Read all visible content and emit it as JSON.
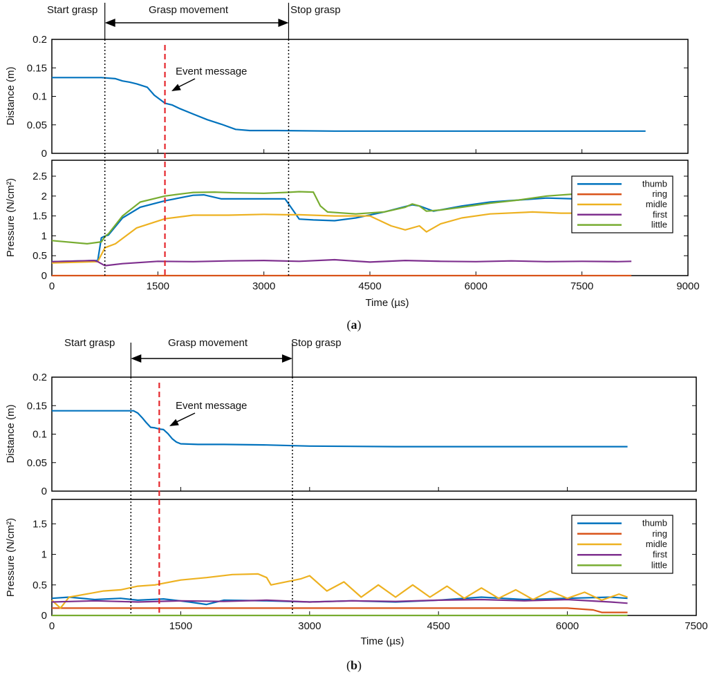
{
  "captions": {
    "a": "a",
    "b": "b"
  },
  "chart_data": [
    {
      "id": "a-distance",
      "panel": "a",
      "type": "line",
      "ylabel": "Distance (m)",
      "xlabel": "",
      "xlim": [
        0,
        9000
      ],
      "ylim": [
        0,
        0.2
      ],
      "yticks": [
        0,
        0.05,
        0.1,
        0.15,
        0.2
      ],
      "ytick_labels": [
        "0",
        "0.05",
        "0.1",
        "0.15",
        "0.2"
      ],
      "series": [
        {
          "color": "#0072bd",
          "x": [
            0,
            700,
            900,
            1000,
            1100,
            1200,
            1350,
            1450,
            1600,
            1700,
            1800,
            2000,
            2200,
            2400,
            2600,
            2800,
            3200,
            4000,
            5000,
            6000,
            7000,
            8400
          ],
          "y": [
            0.133,
            0.133,
            0.131,
            0.127,
            0.125,
            0.122,
            0.116,
            0.102,
            0.088,
            0.085,
            0.079,
            0.069,
            0.059,
            0.051,
            0.042,
            0.04,
            0.04,
            0.039,
            0.039,
            0.039,
            0.039,
            0.039
          ]
        }
      ]
    },
    {
      "id": "a-pressure",
      "panel": "a",
      "type": "line",
      "ylabel": "Pressure (N/cm²)",
      "xlabel": "Time (µs)",
      "xlim": [
        0,
        9000
      ],
      "ylim": [
        0,
        2.9
      ],
      "yticks": [
        0,
        0.5,
        1,
        1.5,
        2,
        2.5
      ],
      "ytick_labels": [
        "0",
        "0.5",
        "1",
        "1.5",
        "2",
        "2.5"
      ],
      "xticks": [
        0,
        1500,
        3000,
        4500,
        6000,
        7500,
        9000
      ],
      "xtick_labels": [
        "0",
        "1500",
        "3000",
        "4500",
        "6000",
        "7500",
        "9000"
      ],
      "legend_position": "top-right",
      "series": [
        {
          "name": "thumb",
          "color": "#0072bd",
          "x": [
            0,
            650,
            700,
            760,
            800,
            1000,
            1250,
            1600,
            2000,
            2150,
            2400,
            3000,
            3300,
            3500,
            3700,
            4000,
            4300,
            4700,
            5100,
            5200,
            5400,
            5800,
            6200,
            6600,
            7000,
            7400
          ],
          "y": [
            0.35,
            0.38,
            0.95,
            1.0,
            1.02,
            1.45,
            1.72,
            1.88,
            2.02,
            2.03,
            1.93,
            1.93,
            1.93,
            1.42,
            1.4,
            1.38,
            1.45,
            1.6,
            1.78,
            1.75,
            1.62,
            1.75,
            1.85,
            1.9,
            1.95,
            1.93
          ]
        },
        {
          "name": "ring",
          "color": "#d95319",
          "x": [
            0,
            8200
          ],
          "y": [
            0.0,
            0.0
          ]
        },
        {
          "name": "midle",
          "color": "#edb120",
          "x": [
            0,
            650,
            750,
            900,
            1200,
            1600,
            2000,
            2500,
            3000,
            3300,
            3500,
            4000,
            4500,
            4800,
            5000,
            5200,
            5300,
            5500,
            5800,
            6200,
            6800,
            7200,
            7500
          ],
          "y": [
            0.32,
            0.35,
            0.7,
            0.8,
            1.2,
            1.43,
            1.52,
            1.52,
            1.54,
            1.53,
            1.53,
            1.5,
            1.5,
            1.25,
            1.15,
            1.25,
            1.1,
            1.3,
            1.45,
            1.55,
            1.6,
            1.57,
            1.57
          ]
        },
        {
          "name": "first",
          "color": "#7e2f8e",
          "x": [
            0,
            600,
            650,
            750,
            1000,
            1500,
            2000,
            2500,
            3000,
            3500,
            4000,
            4500,
            5000,
            5500,
            6000,
            6500,
            7000,
            7500,
            8000,
            8200
          ],
          "y": [
            0.35,
            0.38,
            0.35,
            0.25,
            0.3,
            0.36,
            0.35,
            0.37,
            0.38,
            0.36,
            0.4,
            0.34,
            0.38,
            0.36,
            0.35,
            0.37,
            0.35,
            0.36,
            0.35,
            0.36
          ]
        },
        {
          "name": "little",
          "color": "#77ac30",
          "x": [
            0,
            500,
            700,
            760,
            800,
            1000,
            1250,
            1600,
            1900,
            2000,
            2300,
            2600,
            3000,
            3300,
            3500,
            3700,
            3800,
            3900,
            4300,
            4700,
            5000,
            5100,
            5200,
            5300,
            5500,
            5800,
            6200,
            6600,
            7000,
            7400
          ],
          "y": [
            0.88,
            0.8,
            0.85,
            1.0,
            1.05,
            1.5,
            1.85,
            2.0,
            2.07,
            2.09,
            2.1,
            2.08,
            2.07,
            2.09,
            2.11,
            2.1,
            1.75,
            1.6,
            1.55,
            1.6,
            1.72,
            1.8,
            1.75,
            1.62,
            1.65,
            1.72,
            1.82,
            1.9,
            2.0,
            2.05
          ]
        }
      ]
    },
    {
      "id": "b-distance",
      "panel": "b",
      "type": "line",
      "ylabel": "Distance (m)",
      "xlabel": "",
      "xlim": [
        0,
        7500
      ],
      "ylim": [
        0,
        0.2
      ],
      "yticks": [
        0,
        0.05,
        0.1,
        0.15,
        0.2
      ],
      "ytick_labels": [
        "0",
        "0.05",
        "0.1",
        "0.15",
        "0.2"
      ],
      "series": [
        {
          "color": "#0072bd",
          "x": [
            0,
            950,
            1000,
            1050,
            1100,
            1150,
            1200,
            1250,
            1300,
            1350,
            1400,
            1450,
            1500,
            1700,
            2000,
            2500,
            3000,
            4000,
            5000,
            6000,
            6700
          ],
          "y": [
            0.141,
            0.141,
            0.137,
            0.129,
            0.12,
            0.112,
            0.111,
            0.109,
            0.108,
            0.101,
            0.092,
            0.086,
            0.083,
            0.082,
            0.082,
            0.081,
            0.079,
            0.078,
            0.078,
            0.078,
            0.078
          ]
        }
      ]
    },
    {
      "id": "b-pressure",
      "panel": "b",
      "type": "line",
      "ylabel": "Pressure (N/cm²)",
      "xlabel": "Time (µs)",
      "xlim": [
        0,
        7500
      ],
      "ylim": [
        0,
        1.9
      ],
      "yticks": [
        0,
        0.5,
        1,
        1.5
      ],
      "ytick_labels": [
        "0",
        "0.5",
        "1",
        "1.5"
      ],
      "xticks": [
        0,
        1500,
        3000,
        4500,
        6000,
        7500
      ],
      "xtick_labels": [
        "0",
        "1500",
        "3000",
        "4500",
        "6000",
        "7500"
      ],
      "legend_position": "top-right",
      "series": [
        {
          "name": "thumb",
          "color": "#0072bd",
          "x": [
            0,
            200,
            500,
            800,
            1000,
            1300,
            1600,
            1800,
            2000,
            2500,
            3000,
            3500,
            4000,
            4500,
            5000,
            5500,
            6000,
            6500,
            6700
          ],
          "y": [
            0.28,
            0.3,
            0.26,
            0.28,
            0.25,
            0.27,
            0.22,
            0.18,
            0.25,
            0.24,
            0.22,
            0.24,
            0.22,
            0.25,
            0.3,
            0.26,
            0.28,
            0.3,
            0.28
          ]
        },
        {
          "name": "ring",
          "color": "#d95319",
          "x": [
            0,
            3000,
            6000,
            6300,
            6400,
            6700
          ],
          "y": [
            0.12,
            0.12,
            0.12,
            0.09,
            0.05,
            0.05
          ]
        },
        {
          "name": "midle",
          "color": "#edb120",
          "x": [
            0,
            100,
            200,
            400,
            600,
            800,
            1000,
            1200,
            1500,
            1800,
            2100,
            2400,
            2500,
            2550,
            2900,
            3000,
            3200,
            3400,
            3600,
            3800,
            4000,
            4200,
            4400,
            4600,
            4800,
            5000,
            5200,
            5400,
            5600,
            5800,
            6000,
            6200,
            6400,
            6600,
            6700
          ],
          "y": [
            0.25,
            0.12,
            0.3,
            0.35,
            0.4,
            0.42,
            0.48,
            0.5,
            0.58,
            0.62,
            0.67,
            0.68,
            0.62,
            0.5,
            0.6,
            0.65,
            0.4,
            0.55,
            0.3,
            0.5,
            0.3,
            0.5,
            0.3,
            0.48,
            0.28,
            0.45,
            0.28,
            0.42,
            0.26,
            0.4,
            0.28,
            0.38,
            0.25,
            0.35,
            0.3
          ]
        },
        {
          "name": "first",
          "color": "#7e2f8e",
          "x": [
            0,
            500,
            1000,
            1500,
            2000,
            2500,
            3000,
            3500,
            4000,
            4500,
            5000,
            5500,
            6000,
            6500,
            6700
          ],
          "y": [
            0.22,
            0.24,
            0.22,
            0.24,
            0.23,
            0.25,
            0.22,
            0.24,
            0.23,
            0.25,
            0.26,
            0.24,
            0.26,
            0.22,
            0.2
          ]
        },
        {
          "name": "little",
          "color": "#77ac30",
          "x": [
            0,
            6700
          ],
          "y": [
            0.0,
            0.0
          ]
        }
      ]
    }
  ],
  "panel_annotations": {
    "a": {
      "start_grasp": "Start grasp",
      "grasp_movement": "Grasp movement",
      "stop_grasp": "Stop grasp",
      "event_message": "Event message",
      "start_x": 750,
      "stop_x": 3350,
      "event_x": 1600
    },
    "b": {
      "start_grasp": "Start grasp",
      "grasp_movement": "Grasp movement",
      "stop_grasp": "Stop grasp",
      "event_message": "Event message",
      "start_x": 920,
      "stop_x": 2800,
      "event_x": 1250
    }
  }
}
